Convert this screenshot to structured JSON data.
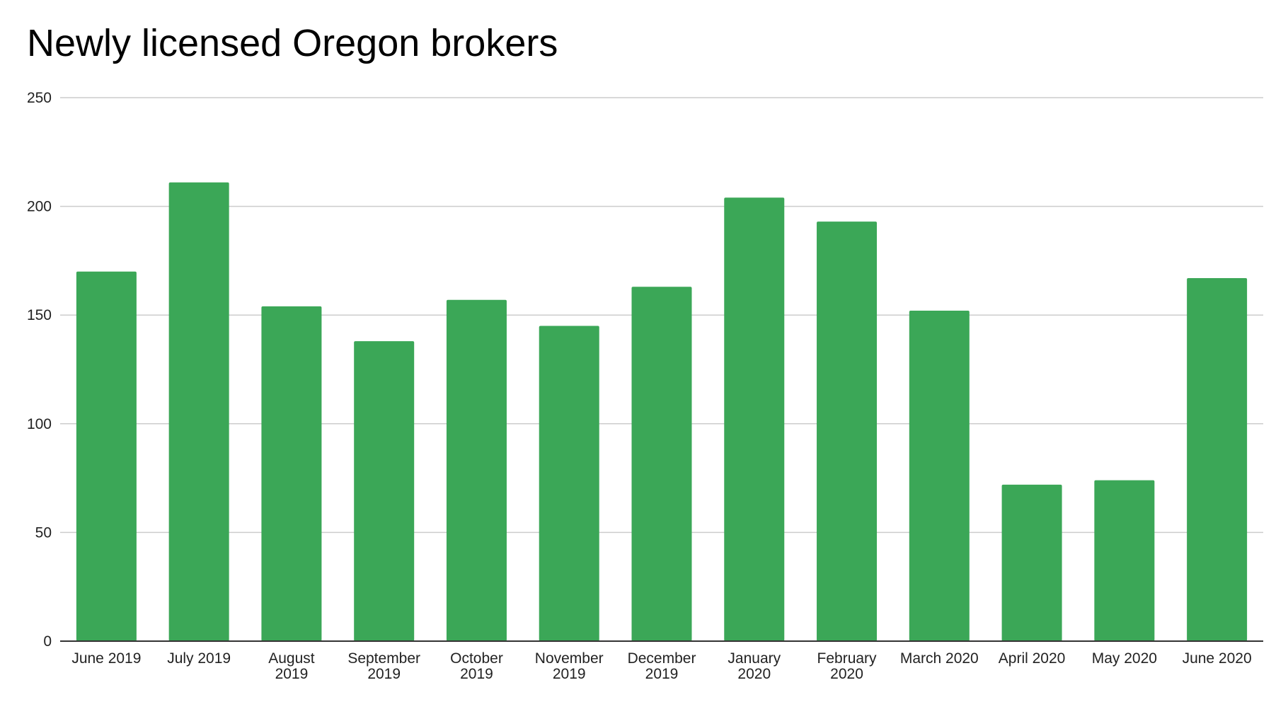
{
  "chart_data": {
    "type": "bar",
    "title": "Newly licensed Oregon brokers",
    "xlabel": "",
    "ylabel": "",
    "categories": [
      [
        "June 2019"
      ],
      [
        "July 2019"
      ],
      [
        "August",
        "2019"
      ],
      [
        "September",
        "2019"
      ],
      [
        "October",
        "2019"
      ],
      [
        "November",
        "2019"
      ],
      [
        "December",
        "2019"
      ],
      [
        "January",
        "2020"
      ],
      [
        "February",
        "2020"
      ],
      [
        "March 2020"
      ],
      [
        "April 2020"
      ],
      [
        "May 2020"
      ],
      [
        "June 2020"
      ]
    ],
    "values": [
      170,
      211,
      154,
      138,
      157,
      145,
      163,
      204,
      193,
      152,
      72,
      74,
      167
    ],
    "ylim": [
      0,
      250
    ],
    "yticks": [
      0,
      50,
      100,
      150,
      200,
      250
    ],
    "grid": true,
    "legend": "none",
    "colors": {
      "bar": "#3ba757",
      "grid": "#cccccc",
      "axis": "#333333"
    }
  }
}
